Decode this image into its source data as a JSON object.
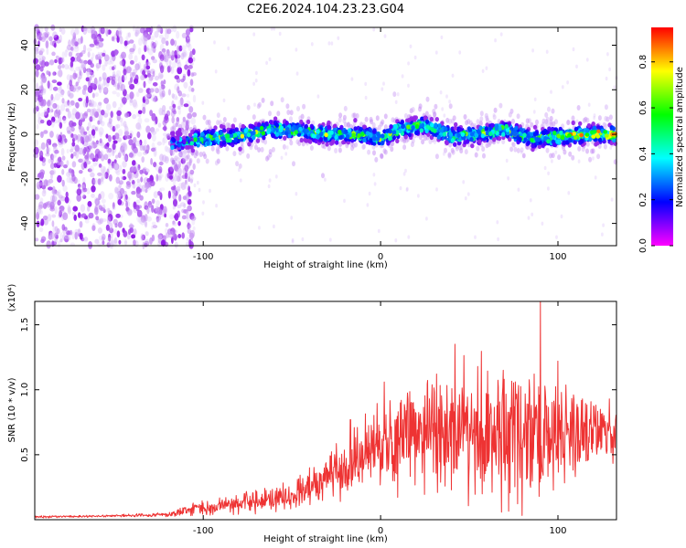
{
  "title": "C2E6.2024.104.23.23.G04",
  "chart_data": [
    {
      "type": "heatmap",
      "xlabel": "Height of straight line (km)",
      "ylabel": "Frequency (Hz)",
      "xlim": [
        -195,
        133
      ],
      "ylim": [
        -50,
        48
      ],
      "xticks": [
        -100,
        0,
        100
      ],
      "xtick_labels": [
        "-100",
        "0",
        "100"
      ],
      "yticks": [
        -40,
        -20,
        0,
        20,
        40
      ],
      "ytick_labels": [
        "-40",
        "-20",
        "0",
        "20",
        "40"
      ],
      "grid": false,
      "colorbar": {
        "label": "Normalized spectral amplitude",
        "range": [
          0.0,
          0.95
        ],
        "ticks": [
          0.0,
          0.2,
          0.4,
          0.6,
          0.8
        ],
        "tick_labels": [
          "0.0",
          "0.2",
          "0.4",
          "0.6",
          "0.8"
        ],
        "colormap": [
          "#ff00ff",
          "#0000ff",
          "#00ffff",
          "#00ff00",
          "#ffff00",
          "#ff0000"
        ]
      },
      "noise_region_x": [
        -195,
        -105
      ],
      "signal_region_x": [
        -118,
        133
      ],
      "ridge": [
        {
          "x": -115,
          "f": -4
        },
        {
          "x": -100,
          "f": -2
        },
        {
          "x": -80,
          "f": -1
        },
        {
          "x": -65,
          "f": 2
        },
        {
          "x": -50,
          "f": 2
        },
        {
          "x": -30,
          "f": 0
        },
        {
          "x": -10,
          "f": 0
        },
        {
          "x": 0,
          "f": -2
        },
        {
          "x": 10,
          "f": 2
        },
        {
          "x": 25,
          "f": 4
        },
        {
          "x": 40,
          "f": -1
        },
        {
          "x": 55,
          "f": 0
        },
        {
          "x": 70,
          "f": 2
        },
        {
          "x": 85,
          "f": -2
        },
        {
          "x": 100,
          "f": -1
        },
        {
          "x": 115,
          "f": 0
        },
        {
          "x": 133,
          "f": 0
        }
      ]
    },
    {
      "type": "line",
      "xlabel": "Height of straight line (km)",
      "ylabel": "SNR (10 * v/v)",
      "yscale_label": "(x10⁴)",
      "xlim": [
        -195,
        133
      ],
      "ylim": [
        0,
        1.68
      ],
      "xticks": [
        -100,
        0,
        100
      ],
      "xtick_labels": [
        "-100",
        "0",
        "100"
      ],
      "yticks": [
        0.5,
        1.0,
        1.5
      ],
      "ytick_labels": [
        "0.5",
        "1.0",
        "1.5"
      ],
      "grid": false,
      "color": "#ee3333",
      "envelope": {
        "x": [
          -195,
          -150,
          -120,
          -110,
          -100,
          -80,
          -60,
          -45,
          -35,
          -20,
          -5,
          5,
          15,
          30,
          45,
          60,
          75,
          90,
          105,
          120,
          133
        ],
        "mean": [
          0.02,
          0.03,
          0.04,
          0.07,
          0.09,
          0.12,
          0.16,
          0.22,
          0.3,
          0.38,
          0.5,
          0.55,
          0.65,
          0.68,
          0.7,
          0.7,
          0.68,
          0.66,
          0.65,
          0.67,
          0.68
        ],
        "spread": [
          0.01,
          0.01,
          0.02,
          0.05,
          0.07,
          0.09,
          0.12,
          0.15,
          0.2,
          0.28,
          0.38,
          0.42,
          0.48,
          0.55,
          0.62,
          0.65,
          0.7,
          0.62,
          0.42,
          0.3,
          0.25
        ],
        "peaks": [
          {
            "x": -40,
            "value": 0.4
          },
          {
            "x": -17,
            "value": 0.77
          },
          {
            "x": 2,
            "value": 1.06
          },
          {
            "x": 42,
            "value": 1.35
          },
          {
            "x": 90,
            "value": 1.68
          },
          {
            "x": 100,
            "value": 1.22
          }
        ]
      }
    }
  ]
}
